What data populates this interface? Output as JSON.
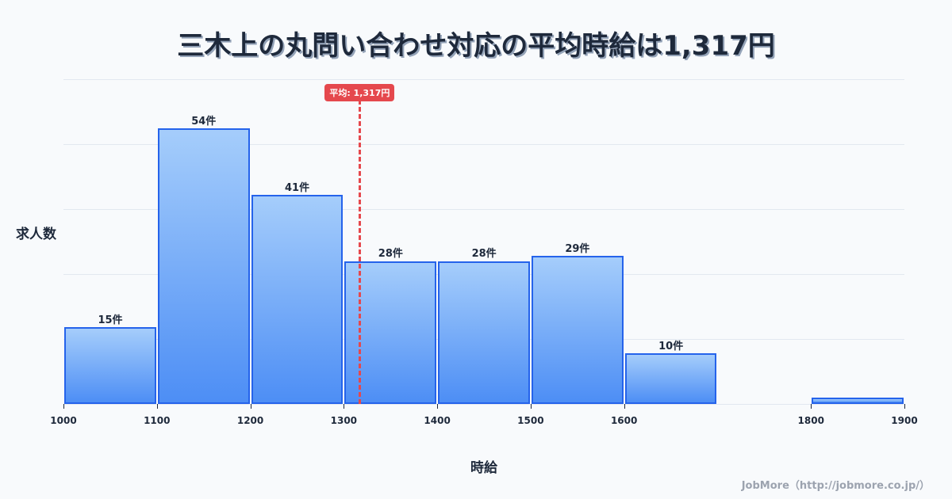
{
  "title": "三木上の丸問い合わせ対応の平均時給は1,317円",
  "ylabel": "求人数",
  "xlabel": "時給",
  "footer": "JobMore（http://jobmore.co.jp/）",
  "average": {
    "value": 1317,
    "label": "平均: 1,317円",
    "color": "#e5484d"
  },
  "chart_data": {
    "type": "bar",
    "title": "三木上の丸問い合わせ対応の平均時給は1,317円",
    "xlabel": "時給",
    "ylabel": "求人数",
    "categories": [
      "1000-1100",
      "1100-1200",
      "1200-1300",
      "1300-1400",
      "1400-1500",
      "1500-1600",
      "1600-1700",
      "1700-1800",
      "1800-1900"
    ],
    "values": [
      15,
      54,
      41,
      28,
      28,
      29,
      10,
      0,
      1
    ],
    "bar_labels": [
      "15件",
      "54件",
      "41件",
      "28件",
      "28件",
      "29件",
      "10件",
      "",
      ""
    ],
    "x_ticks": [
      "1000",
      "1100",
      "1200",
      "1300",
      "1400",
      "1500",
      "1600",
      "1800",
      "1900"
    ],
    "xlim": [
      1000,
      1900
    ],
    "ylim": [
      0,
      63.6
    ],
    "grid": true,
    "annotations": [
      "平均: 1,317円"
    ],
    "bar_color": "#4d8ef5",
    "bar_border": "#2563eb"
  }
}
